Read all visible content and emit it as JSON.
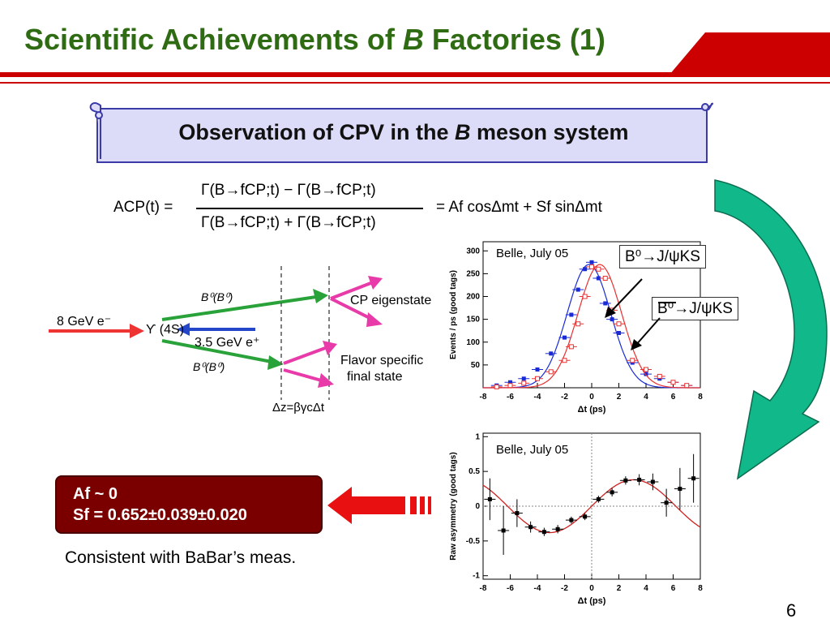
{
  "title": {
    "pre": "Scientific Achievements of ",
    "b": "B",
    "post": " Factories (1)"
  },
  "banner": {
    "pre": "Observation of CPV in the ",
    "b": "B",
    "post": " meson system"
  },
  "equation": {
    "lhs": "ACP(t) =",
    "numerator": "Γ(B→fCP;t) − Γ(B→fCP;t)",
    "denominator": "Γ(B→fCP;t) + Γ(B→fCP;t)",
    "rhs": "= Af cosΔmt + Sf sinΔmt"
  },
  "diagram": {
    "beam_e_minus": "8 GeV e⁻",
    "upsilon": "ϒ (4S)",
    "beam_e_plus": "3.5 GeV e⁺",
    "upper_meson": "B⁰(B⁰)",
    "lower_meson": "B⁰(B⁰)",
    "cp_eigenstate": "CP eigenstate",
    "flavor_specific_1": "Flavor specific",
    "flavor_specific_2": "final state",
    "dz_label": "Δz=βγcΔt"
  },
  "plot_top": {
    "label": "Belle, July 05",
    "ylabel": "Events / ps (good tags)",
    "xlabel": "Δt (ps)",
    "yticks": [
      "50",
      "100",
      "150",
      "200",
      "250",
      "300"
    ],
    "xticks": [
      "-8",
      "-6",
      "-4",
      "-2",
      "0",
      "2",
      "4",
      "6",
      "8"
    ],
    "legend_b0": "B⁰→J/ψKS",
    "legend_b0bar": "B⁰→J/ψKS"
  },
  "plot_bottom": {
    "label": "Belle, July 05",
    "ylabel": "Raw asymmetry (good tags)",
    "xlabel": "Δt (ps)",
    "yticks": [
      "1",
      "0.5",
      "0",
      "-0.5",
      "-1"
    ],
    "xticks": [
      "-8",
      "-6",
      "-4",
      "-2",
      "0",
      "2",
      "4",
      "6",
      "8"
    ]
  },
  "result": {
    "af_line": "Af ~ 0",
    "sf_line": "Sf = 0.652±0.039±0.020"
  },
  "consistent": "Consistent with BaBar’s meas.",
  "page_number": "6",
  "colors": {
    "title_green": "#2e6b12",
    "banner_bg": "#dcdcf8",
    "red_accent": "#cc0000",
    "result_bg": "#7a0000",
    "teal_arrow": "#10b88a",
    "blue_series": "#1a2bd6",
    "red_series": "#e83030"
  },
  "chart_data": [
    {
      "type": "scatter",
      "title": "Belle, July 05",
      "xlabel": "Δt (ps)",
      "ylabel": "Events / ps (good tags)",
      "xlim": [
        -8,
        8
      ],
      "ylim": [
        0,
        320
      ],
      "series": [
        {
          "name": "B⁰→J/ψKS",
          "x": [
            -7,
            -6,
            -5,
            -4,
            -3,
            -2,
            -1.5,
            -1,
            -0.5,
            0,
            0.5,
            1,
            1.5,
            2,
            3,
            4,
            5,
            6,
            7
          ],
          "y": [
            5,
            12,
            20,
            40,
            75,
            110,
            160,
            215,
            260,
            275,
            240,
            185,
            150,
            120,
            55,
            30,
            20,
            12,
            5
          ]
        },
        {
          "name": "B⁰→J/ψKS",
          "x": [
            -7,
            -6,
            -5,
            -4,
            -3,
            -2,
            -1.5,
            -1,
            -0.5,
            0,
            0.5,
            1,
            1.5,
            2,
            3,
            4,
            5,
            6,
            7
          ],
          "y": [
            2,
            5,
            10,
            20,
            35,
            60,
            90,
            140,
            200,
            265,
            260,
            240,
            170,
            140,
            60,
            40,
            25,
            12,
            5
          ]
        }
      ]
    },
    {
      "type": "scatter",
      "title": "Belle, July 05",
      "xlabel": "Δt (ps)",
      "ylabel": "Raw asymmetry (good tags)",
      "xlim": [
        -8,
        8
      ],
      "ylim": [
        -1.05,
        1.05
      ],
      "series": [
        {
          "x": [
            -7.5,
            -6.5,
            -5.5,
            -4.5,
            -3.5,
            -2.5,
            -1.5,
            -0.5,
            0.5,
            1.5,
            2.5,
            3.5,
            4.5,
            5.5,
            6.5,
            7.5
          ],
          "y": [
            0.1,
            -0.35,
            -0.1,
            -0.3,
            -0.37,
            -0.33,
            -0.2,
            -0.15,
            0.1,
            0.2,
            0.37,
            0.38,
            0.35,
            0.05,
            0.25,
            0.4
          ]
        }
      ]
    }
  ]
}
